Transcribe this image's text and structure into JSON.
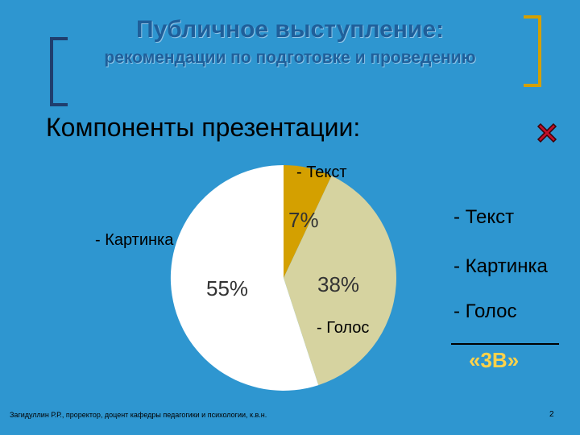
{
  "slide": {
    "title": "Публичное выступление:",
    "subtitle": "рекомендации по подготовке и проведению",
    "section_heading": "Компоненты презентации:",
    "footer": "Загидуллин Р.Р., проректор, доцент кафедры педагогики и психологии, к.в.н.",
    "page_number": "2"
  },
  "chart_data": {
    "type": "pie",
    "slices": [
      {
        "label": "- Текст",
        "value": 7,
        "value_label": "7%",
        "color": "#D4A000"
      },
      {
        "label": "- Голос",
        "value": 38,
        "value_label": "38%",
        "color": "#D6D3A0"
      },
      {
        "label": "- Картинка",
        "value": 55,
        "value_label": "55%",
        "color": "#FFFFFF"
      }
    ]
  },
  "side_list": {
    "items": [
      "- Текст",
      "- Картинка",
      "- Голос"
    ],
    "summary": "«3В»"
  },
  "colors": {
    "background": "#2E96D0",
    "accent": "#FFD24A",
    "close": "#C0102A"
  },
  "icons": {
    "close": "close-icon"
  }
}
